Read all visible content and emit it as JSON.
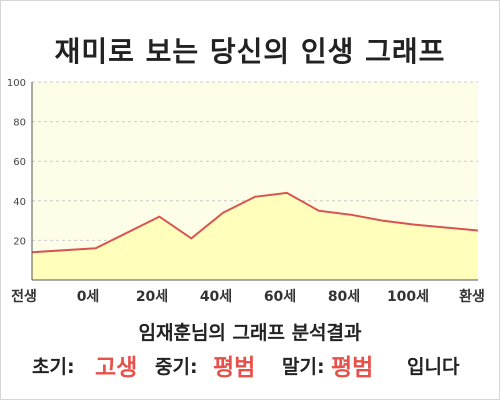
{
  "title": "재미로 보는 당신의 인생 그래프",
  "chart_data": {
    "type": "area",
    "x_categories": [
      "전생",
      "0세",
      "20세",
      "40세",
      "60세",
      "80세",
      "100세",
      "환생"
    ],
    "x": [
      -20,
      0,
      20,
      30,
      40,
      50,
      60,
      70,
      80,
      90,
      100,
      120
    ],
    "values": [
      14,
      16,
      32,
      21,
      34,
      42,
      44,
      35,
      33,
      30,
      28,
      25
    ],
    "y_ticks": [
      "20",
      "40",
      "60",
      "80",
      "100"
    ],
    "ylim": [
      0,
      100
    ],
    "xlim": [
      -20,
      120
    ],
    "grid": "horizontal-dashed",
    "colors": {
      "fill": "#ffffbb",
      "line": "#d9534f",
      "plot_bg": "#fdfde8",
      "grid": "#cccccc"
    }
  },
  "caption": "임재훈님의 그래프 분석결과",
  "summary": {
    "early_label": "초기:",
    "early_value": "고생",
    "mid_label": "중기:",
    "mid_value": "평범",
    "late_label": "말기:",
    "late_value": "평범",
    "ending": "입니다"
  }
}
